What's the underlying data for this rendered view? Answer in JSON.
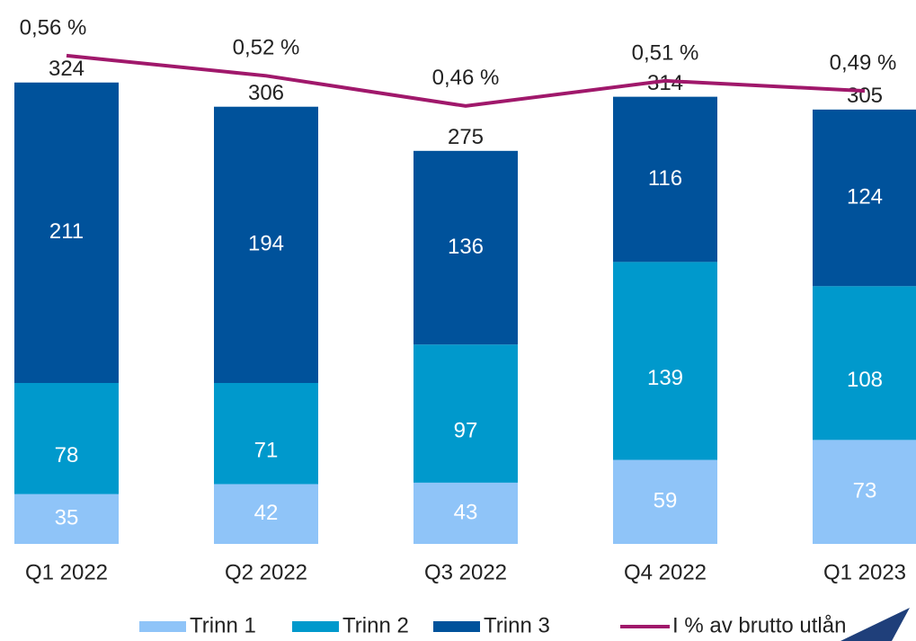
{
  "chart_data": {
    "type": "bar",
    "categories": [
      "Q1 2022",
      "Q2 2022",
      "Q3 2022",
      "Q4 2022",
      "Q1 2023"
    ],
    "series": [
      {
        "name": "Trinn 1",
        "color": "#8fc4f8",
        "values": [
          35,
          42,
          43,
          59,
          73
        ]
      },
      {
        "name": "Trinn 2",
        "color": "#0099cc",
        "values": [
          78,
          71,
          97,
          139,
          108
        ]
      },
      {
        "name": "Trinn 3",
        "color": "#00529b",
        "values": [
          211,
          194,
          136,
          116,
          124
        ]
      },
      {
        "name": "I % av brutto utlån",
        "color": "#a0186b",
        "type": "line",
        "axis": "y2",
        "values": [
          0.56,
          0.52,
          0.46,
          0.51,
          0.49
        ],
        "value_labels": [
          "0,56 %",
          "0,52 %",
          "0,46 %",
          "0,51 %",
          "0,49 %"
        ]
      }
    ],
    "totals": [
      324,
      306,
      275,
      314,
      305
    ],
    "ylim": [
      0,
      363
    ],
    "y2lim": [
      -0.41,
      0.617
    ],
    "legend": "bottom"
  }
}
